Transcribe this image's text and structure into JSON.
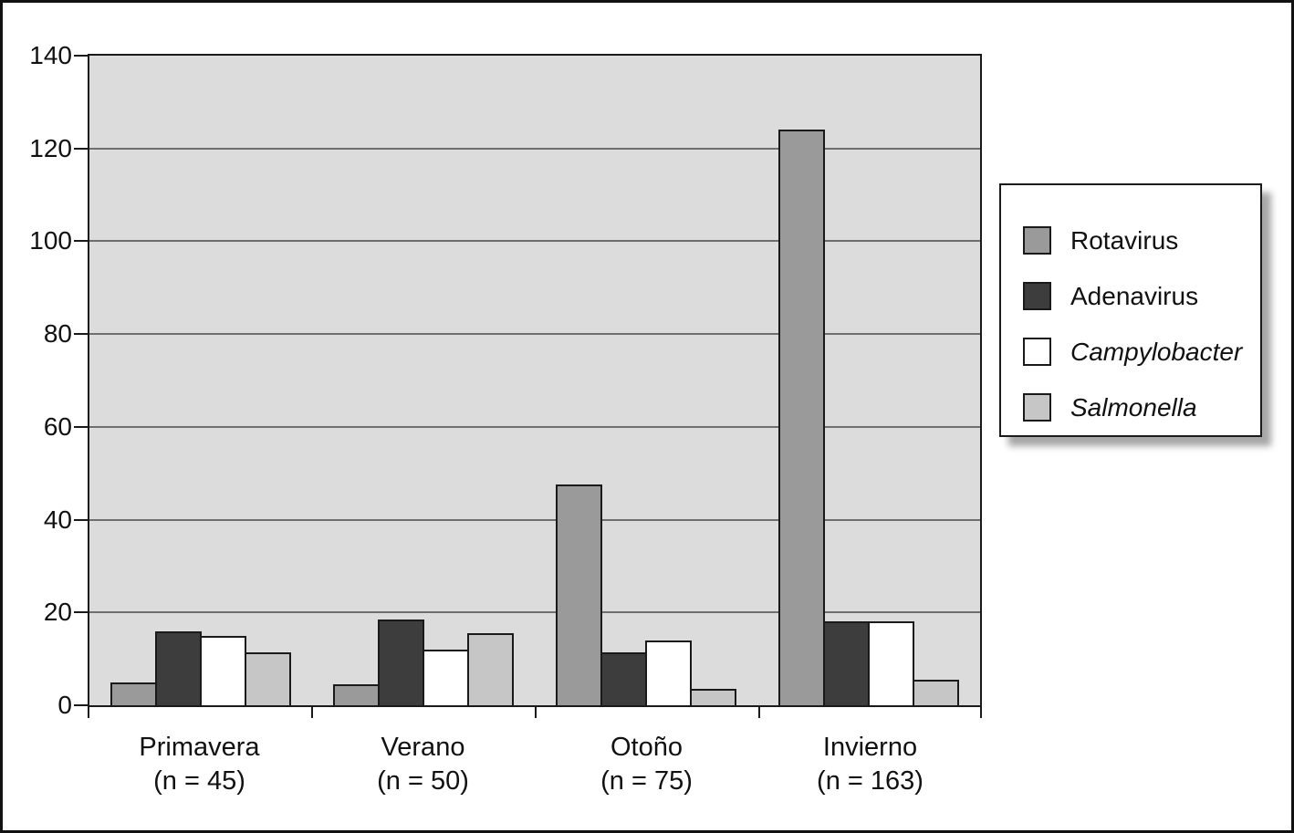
{
  "figure": {
    "background_color": "#ffffff",
    "frame_color": "#111111"
  },
  "chart_data": {
    "type": "bar",
    "title": "",
    "xlabel": "",
    "ylabel": "",
    "categories": [
      {
        "label": "Primavera",
        "sublabel": "(n = 45)"
      },
      {
        "label": "Verano",
        "sublabel": "(n = 50)"
      },
      {
        "label": "Otoño",
        "sublabel": "(n = 75)"
      },
      {
        "label": "Invierno",
        "sublabel": "(n = 163)"
      }
    ],
    "series": [
      {
        "name": "Rotavirus",
        "italic": false,
        "color": "#9a9a9a",
        "values": [
          5,
          4.5,
          47.5,
          124
        ]
      },
      {
        "name": "Adenavirus",
        "italic": false,
        "color": "#3d3d3d",
        "values": [
          16,
          18.5,
          11.5,
          18
        ]
      },
      {
        "name": "Campylobacter",
        "italic": true,
        "color": "#ffffff",
        "values": [
          15,
          12,
          14,
          18
        ]
      },
      {
        "name": "Salmonella",
        "italic": true,
        "color": "#c6c6c6",
        "values": [
          11.5,
          15.5,
          3.5,
          5.5
        ]
      }
    ],
    "y_axis": {
      "min": 0,
      "max": 140,
      "step": 20,
      "tick_labels": [
        "0",
        "20",
        "40",
        "60",
        "80",
        "100",
        "120",
        "140"
      ]
    },
    "grid": true,
    "legend_position": "right",
    "plot_background": "#dcdcdc",
    "gridline_color": "#6e6e6e",
    "axis_color": "#1a1a1a"
  }
}
